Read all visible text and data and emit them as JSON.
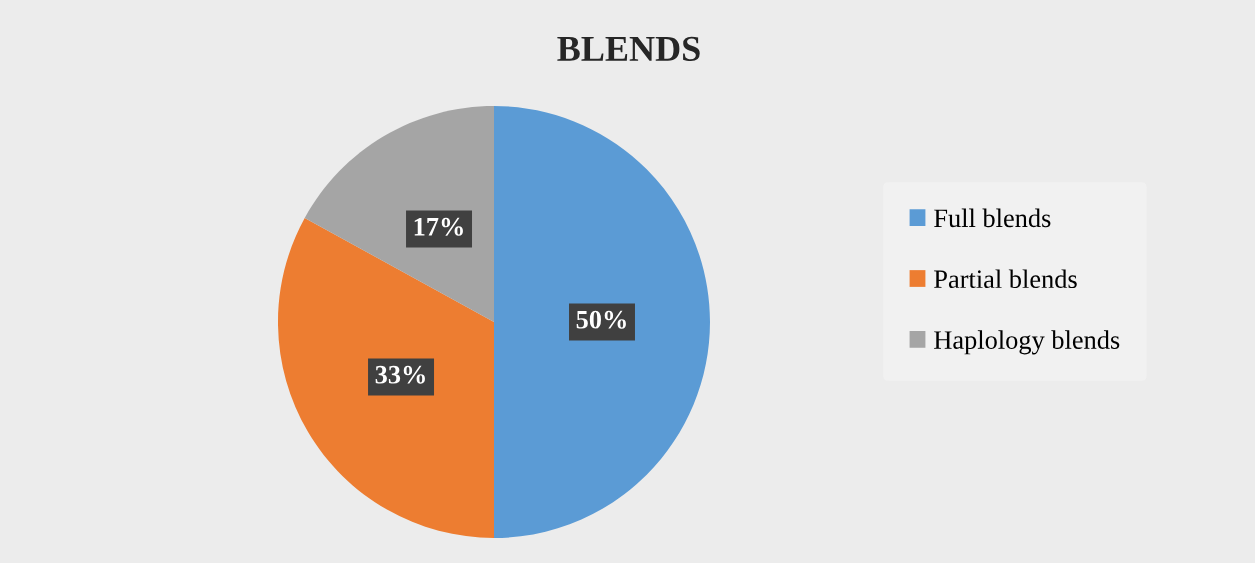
{
  "chart_data": {
    "type": "pie",
    "title": "BLENDS",
    "categories": [
      "Full blends",
      "Partial blends",
      "Haplology blends"
    ],
    "values": [
      50,
      33,
      17
    ],
    "colors": [
      "#5b9bd5",
      "#ed7d31",
      "#a5a5a5"
    ],
    "value_labels": [
      "50%",
      "33%",
      "17%"
    ],
    "legend": "right"
  }
}
